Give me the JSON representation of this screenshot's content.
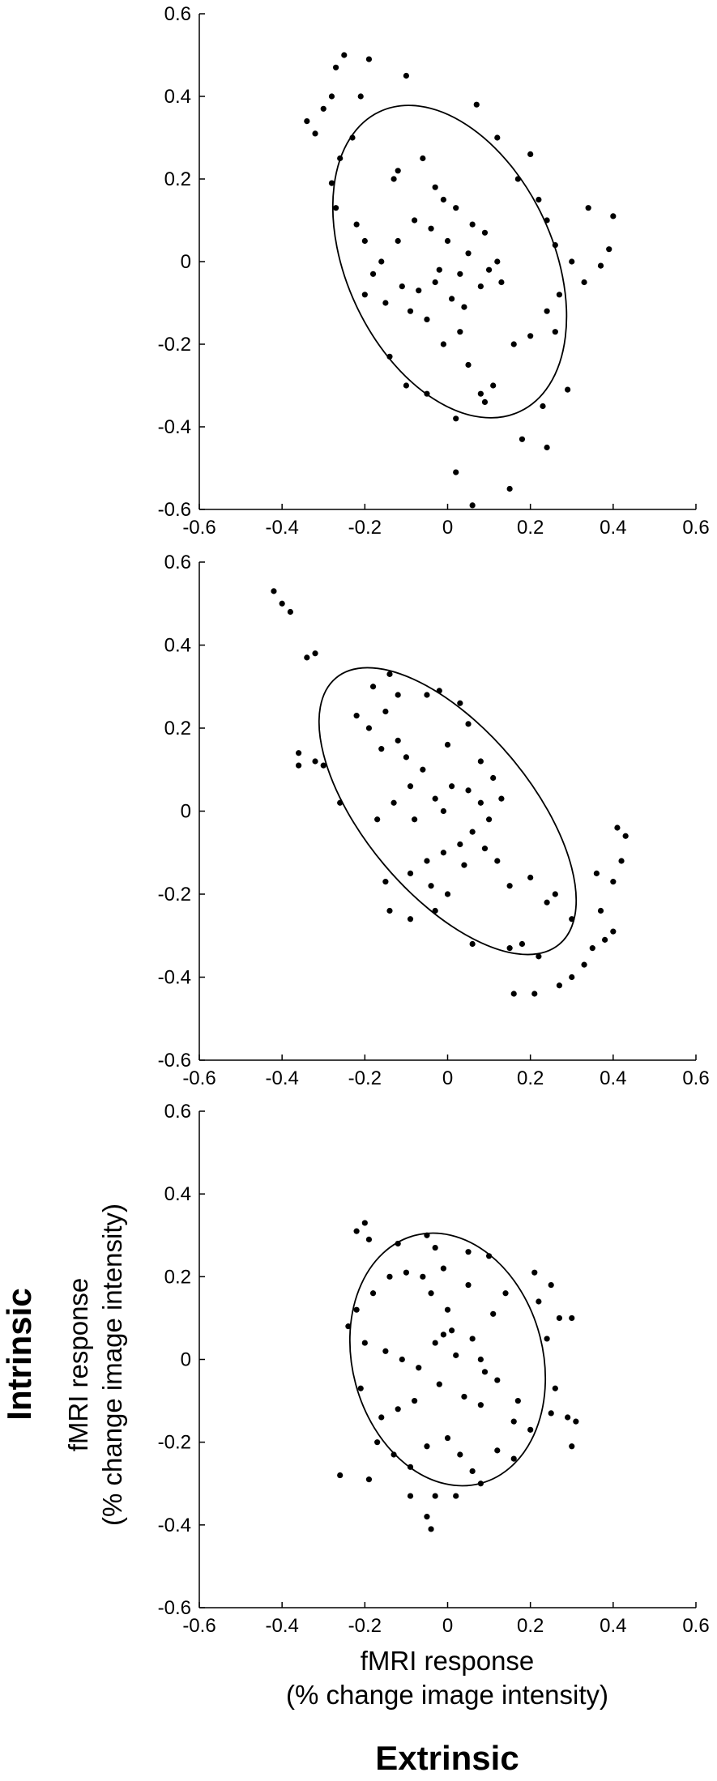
{
  "chart_data": [
    {
      "type": "scatter",
      "color": "#000000",
      "xlim": [
        -0.6,
        0.6
      ],
      "ylim": [
        -0.6,
        0.6
      ],
      "xticks": [
        -0.6,
        -0.4,
        -0.2,
        0,
        0.2,
        0.4,
        0.6
      ],
      "yticks": [
        -0.6,
        -0.4,
        -0.2,
        0,
        0.2,
        0.4,
        0.6
      ],
      "ellipse": {
        "cx": 0.005,
        "cy": 0.0,
        "rx": 0.4,
        "ry": 0.25,
        "angle": 115
      },
      "x": [
        -0.27,
        -0.25,
        -0.19,
        -0.28,
        -0.3,
        -0.34,
        -0.32,
        -0.1,
        -0.21,
        -0.23,
        -0.26,
        -0.28,
        -0.27,
        -0.22,
        -0.2,
        -0.12,
        -0.13,
        -0.06,
        0.07,
        0.12,
        0.17,
        0.22,
        0.2,
        0.24,
        0.26,
        0.3,
        0.33,
        0.34,
        0.4,
        0.39,
        0.37,
        0.27,
        0.24,
        0.26,
        0.2,
        0.16,
        0.29,
        0.23,
        0.24,
        0.18,
        0.15,
        0.02,
        0.06,
        0.02,
        0.08,
        0.11,
        0.05,
        -0.01,
        0.03,
        -0.05,
        -0.09,
        -0.15,
        -0.2,
        -0.11,
        -0.07,
        -0.03,
        0.01,
        0.04,
        0.08,
        0.1,
        0.05,
        0.0,
        -0.04,
        -0.08,
        -0.12,
        -0.16,
        -0.18,
        0.02,
        0.06,
        0.09,
        -0.03,
        -0.01,
        0.12,
        0.13,
        -0.14,
        -0.1,
        -0.05,
        0.09,
        -0.02,
        0.03
      ],
      "y": [
        0.47,
        0.5,
        0.49,
        0.4,
        0.37,
        0.34,
        0.31,
        0.45,
        0.4,
        0.3,
        0.25,
        0.19,
        0.13,
        0.09,
        0.05,
        0.22,
        0.2,
        0.25,
        0.38,
        0.3,
        0.2,
        0.15,
        0.26,
        0.1,
        0.04,
        0.0,
        -0.05,
        0.13,
        0.11,
        0.03,
        -0.01,
        -0.08,
        -0.12,
        -0.17,
        -0.18,
        -0.2,
        -0.31,
        -0.35,
        -0.45,
        -0.43,
        -0.55,
        -0.51,
        -0.59,
        -0.38,
        -0.32,
        -0.3,
        -0.25,
        -0.2,
        -0.17,
        -0.14,
        -0.12,
        -0.1,
        -0.08,
        -0.06,
        -0.07,
        -0.05,
        -0.09,
        -0.11,
        -0.06,
        -0.02,
        0.02,
        0.05,
        0.08,
        0.1,
        0.05,
        0.0,
        -0.03,
        0.13,
        0.09,
        0.07,
        0.18,
        0.15,
        0.0,
        -0.05,
        -0.23,
        -0.3,
        -0.32,
        -0.34,
        -0.02,
        -0.03
      ]
    },
    {
      "type": "scatter",
      "color": "#000000",
      "xlim": [
        -0.6,
        0.6
      ],
      "ylim": [
        -0.6,
        0.6
      ],
      "xticks": [
        -0.6,
        -0.4,
        -0.2,
        0,
        0.2,
        0.4,
        0.6
      ],
      "yticks": [
        -0.6,
        -0.4,
        -0.2,
        0,
        0.2,
        0.4,
        0.6
      ],
      "ellipse": {
        "cx": 0.0,
        "cy": 0.0,
        "rx": 0.42,
        "ry": 0.2,
        "angle": 130
      },
      "x": [
        -0.42,
        -0.4,
        -0.38,
        -0.34,
        -0.32,
        -0.36,
        -0.36,
        -0.32,
        -0.3,
        -0.26,
        -0.22,
        -0.18,
        -0.14,
        -0.12,
        -0.15,
        -0.19,
        -0.12,
        -0.16,
        -0.1,
        -0.05,
        -0.02,
        0.03,
        0.05,
        0.0,
        -0.06,
        -0.09,
        -0.13,
        -0.17,
        -0.08,
        -0.03,
        0.01,
        0.05,
        0.08,
        0.1,
        0.06,
        0.03,
        -0.01,
        -0.05,
        -0.09,
        -0.04,
        0.0,
        -0.15,
        -0.14,
        -0.09,
        -0.03,
        0.12,
        0.15,
        0.2,
        0.26,
        0.24,
        0.3,
        0.18,
        0.15,
        0.22,
        0.06,
        0.16,
        0.21,
        0.27,
        0.3,
        0.33,
        0.35,
        0.38,
        0.4,
        0.37,
        0.4,
        0.42,
        0.43,
        0.41,
        0.36,
        0.11,
        0.13,
        0.08,
        -0.01,
        0.04,
        0.09
      ],
      "y": [
        0.53,
        0.5,
        0.48,
        0.37,
        0.38,
        0.14,
        0.11,
        0.12,
        0.11,
        0.02,
        0.23,
        0.3,
        0.33,
        0.28,
        0.24,
        0.2,
        0.17,
        0.15,
        0.13,
        0.28,
        0.29,
        0.26,
        0.21,
        0.16,
        0.1,
        0.06,
        0.02,
        -0.02,
        -0.02,
        0.03,
        0.06,
        0.05,
        0.02,
        -0.02,
        -0.05,
        -0.08,
        -0.1,
        -0.12,
        -0.15,
        -0.18,
        -0.2,
        -0.17,
        -0.24,
        -0.26,
        -0.24,
        -0.12,
        -0.18,
        -0.16,
        -0.2,
        -0.22,
        -0.26,
        -0.32,
        -0.33,
        -0.35,
        -0.32,
        -0.44,
        -0.44,
        -0.42,
        -0.4,
        -0.37,
        -0.33,
        -0.31,
        -0.29,
        -0.24,
        -0.17,
        -0.12,
        -0.06,
        -0.04,
        -0.15,
        0.08,
        0.03,
        0.12,
        0.0,
        -0.13,
        -0.09
      ]
    },
    {
      "type": "scatter",
      "color": "#000000",
      "xlim": [
        -0.6,
        0.6
      ],
      "ylim": [
        -0.6,
        0.6
      ],
      "xticks": [
        -0.6,
        -0.4,
        -0.2,
        0,
        0.2,
        0.4,
        0.6
      ],
      "yticks": [
        -0.6,
        -0.4,
        -0.2,
        0,
        0.2,
        0.4,
        0.6
      ],
      "ellipse": {
        "cx": 0.0,
        "cy": 0.0,
        "rx": 0.31,
        "ry": 0.23,
        "angle": 105
      },
      "x": [
        -0.22,
        -0.2,
        -0.19,
        -0.12,
        -0.05,
        -0.03,
        0.05,
        0.1,
        0.21,
        0.25,
        0.22,
        0.27,
        0.3,
        0.24,
        0.26,
        0.25,
        0.29,
        0.31,
        0.3,
        0.2,
        0.16,
        0.17,
        0.12,
        0.08,
        0.06,
        0.11,
        0.14,
        0.05,
        0.0,
        -0.04,
        -0.06,
        -0.1,
        -0.14,
        -0.18,
        -0.22,
        -0.24,
        -0.2,
        -0.15,
        -0.11,
        -0.07,
        -0.03,
        -0.01,
        0.02,
        -0.02,
        0.04,
        0.08,
        -0.08,
        -0.12,
        -0.16,
        -0.21,
        -0.17,
        -0.13,
        -0.09,
        -0.05,
        0.0,
        0.03,
        0.06,
        0.08,
        0.02,
        -0.03,
        -0.09,
        -0.05,
        -0.04,
        -0.26,
        -0.19,
        0.12,
        0.16,
        -0.01,
        0.01,
        0.09
      ],
      "y": [
        0.31,
        0.33,
        0.29,
        0.28,
        0.3,
        0.27,
        0.26,
        0.25,
        0.21,
        0.18,
        0.14,
        0.1,
        0.1,
        0.05,
        -0.07,
        -0.13,
        -0.14,
        -0.15,
        -0.21,
        -0.17,
        -0.15,
        -0.1,
        -0.05,
        0.0,
        0.05,
        0.11,
        0.16,
        0.18,
        0.12,
        0.16,
        0.2,
        0.21,
        0.2,
        0.16,
        0.12,
        0.08,
        0.04,
        0.02,
        0.0,
        -0.02,
        0.04,
        0.06,
        0.01,
        -0.06,
        -0.09,
        -0.11,
        -0.1,
        -0.12,
        -0.14,
        -0.07,
        -0.2,
        -0.23,
        -0.26,
        -0.21,
        -0.19,
        -0.23,
        -0.27,
        -0.3,
        -0.33,
        -0.33,
        -0.33,
        -0.38,
        -0.41,
        -0.28,
        -0.29,
        -0.22,
        -0.24,
        0.22,
        0.07,
        -0.03
      ]
    }
  ],
  "x_axis": {
    "label": [
      "fMRI response",
      "(% change image intensity)"
    ],
    "group": "Extrinsic"
  },
  "y_axis": {
    "label": [
      "fMRI response",
      "(% change image intensity)"
    ],
    "group": "Intrinsic"
  }
}
